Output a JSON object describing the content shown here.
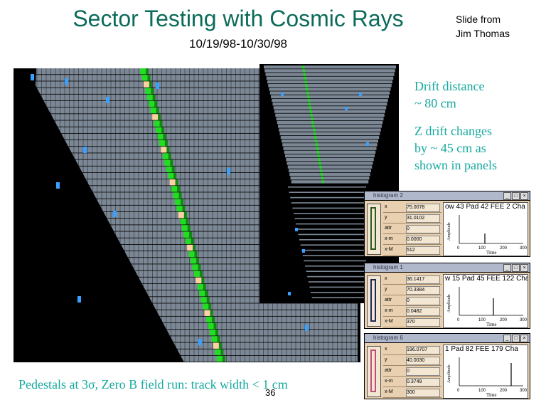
{
  "slide": {
    "title": "Sector Testing with Cosmic Rays",
    "subtitle": "10/19/98-10/30/98",
    "credit_line1": "Slide from",
    "credit_line2": "Jim Thomas",
    "note_drift_1": "Drift distance",
    "note_drift_2": "~ 80 cm",
    "note_z_1": "Z drift changes",
    "note_z_2": "by  ~ 45 cm as",
    "note_z_3": "shown in panels",
    "bottom_note": "Pedestals at 3σ,   Zero B field run: track width < 1 cm",
    "page_number": "36"
  },
  "colors": {
    "title": "#0b6b5a",
    "notes": "#17a9a0",
    "pad_gray": "#7b8794",
    "track_green": "#22dd22",
    "hit_blue": "#3aa0ff"
  },
  "histograms": [
    {
      "window_title": "histogram 2",
      "plot_title": "ow 43 Pad 42 FEE 2 Cha",
      "fields": [
        {
          "label": "x",
          "value": "75.0078"
        },
        {
          "label": "y",
          "value": "31.0102"
        },
        {
          "label": "attr",
          "value": "0"
        },
        {
          "label": "x-m",
          "value": "0.0000"
        },
        {
          "label": "x-M",
          "value": "512"
        }
      ],
      "y_axis_label": "Amplitude",
      "x_axis_label": "Time",
      "x_ticks": [
        "0",
        "100",
        "200",
        "300"
      ],
      "frame_color": "#2e5a1e"
    },
    {
      "window_title": "histogram 1",
      "plot_title": "w 15 Pad 45 FEE 122 Cha",
      "fields": [
        {
          "label": "x",
          "value": "36.1417"
        },
        {
          "label": "y",
          "value": "70.3384"
        },
        {
          "label": "attr",
          "value": "0"
        },
        {
          "label": "x-m",
          "value": "0.0482"
        },
        {
          "label": "x-M",
          "value": "370"
        }
      ],
      "y_axis_label": "Amplitude",
      "x_axis_label": "Time",
      "x_ticks": [
        "0",
        "100",
        "200",
        "300"
      ],
      "frame_color": "#1e2a5a"
    },
    {
      "window_title": "histogram 6",
      "plot_title": "1 Pad 82 FEE 179 Cha",
      "fields": [
        {
          "label": "x",
          "value": "196.0707"
        },
        {
          "label": "y",
          "value": "40.0030"
        },
        {
          "label": "attr",
          "value": "0"
        },
        {
          "label": "x-m",
          "value": "0.3749"
        },
        {
          "label": "x-M",
          "value": "300"
        }
      ],
      "y_axis_label": "Amplitude",
      "x_axis_label": "Time",
      "x_ticks": [
        "0",
        "100",
        "200",
        "300"
      ],
      "frame_color": "#c0507a"
    }
  ]
}
